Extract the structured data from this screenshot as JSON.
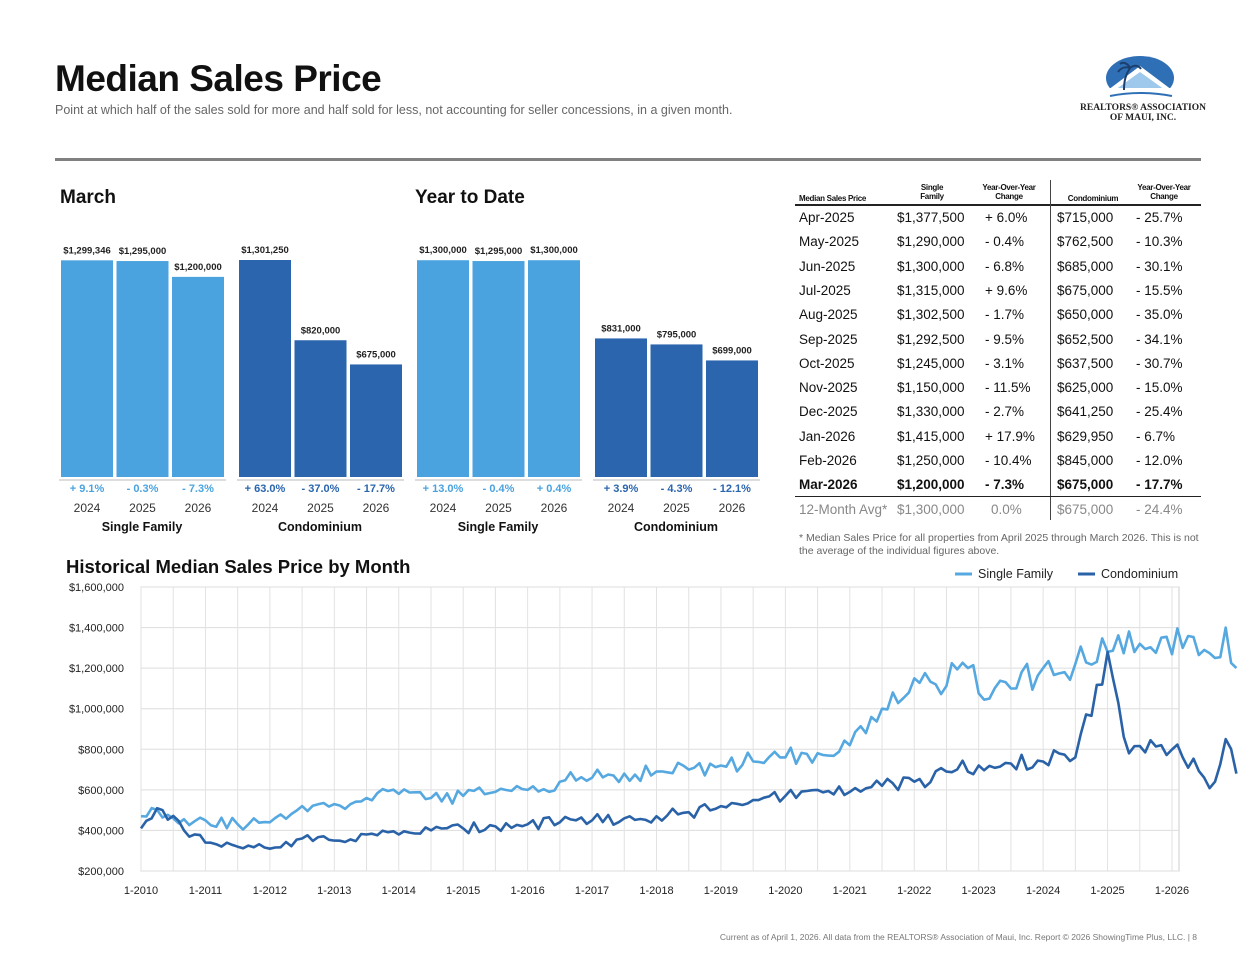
{
  "header": {
    "title": "Median Sales Price",
    "subtitle": "Point at which half of the sales sold for more and half sold for less, not accounting for seller concessions, in a given month.",
    "logo_line1": "REALTORS® ASSOCIATION",
    "logo_line2": "OF MAUI, INC."
  },
  "colors": {
    "single_family": "#4aa3df",
    "condominium": "#2a65ae",
    "historical_sf": "#56a8e0",
    "historical_condo": "#2a62a8"
  },
  "chart_data": [
    {
      "type": "bar",
      "title": "March",
      "groups": [
        {
          "label": "Single Family",
          "categories": [
            "2024",
            "2025",
            "2026"
          ],
          "values": [
            1299346,
            1295000,
            1200000
          ],
          "value_labels": [
            "$1,299,346",
            "$1,295,000",
            "$1,200,000"
          ],
          "changes": [
            "+ 9.1%",
            "- 0.3%",
            "- 7.3%"
          ]
        },
        {
          "label": "Condominium",
          "categories": [
            "2024",
            "2025",
            "2026"
          ],
          "values": [
            1301250,
            820000,
            675000
          ],
          "value_labels": [
            "$1,301,250",
            "$820,000",
            "$675,000"
          ],
          "changes": [
            "+ 63.0%",
            "- 37.0%",
            "- 17.7%"
          ]
        }
      ]
    },
    {
      "type": "bar",
      "title": "Year to Date",
      "groups": [
        {
          "label": "Single Family",
          "categories": [
            "2024",
            "2025",
            "2026"
          ],
          "values": [
            1300000,
            1295000,
            1300000
          ],
          "value_labels": [
            "$1,300,000",
            "$1,295,000",
            "$1,300,000"
          ],
          "changes": [
            "+ 13.0%",
            "- 0.4%",
            "+ 0.4%"
          ]
        },
        {
          "label": "Condominium",
          "categories": [
            "2024",
            "2025",
            "2026"
          ],
          "values": [
            831000,
            795000,
            699000
          ],
          "value_labels": [
            "$831,000",
            "$795,000",
            "$699,000"
          ],
          "changes": [
            "+ 3.9%",
            "- 4.3%",
            "- 12.1%"
          ]
        }
      ]
    },
    {
      "type": "line",
      "title": "Historical Median Sales Price by Month",
      "xlabel": "",
      "ylabel": "",
      "ylim": [
        200000,
        1600000
      ],
      "yticks": [
        "$200,000",
        "$400,000",
        "$600,000",
        "$800,000",
        "$1,000,000",
        "$1,200,000",
        "$1,400,000",
        "$1,600,000"
      ],
      "xticks": [
        "1-2010",
        "1-2011",
        "1-2012",
        "1-2013",
        "1-2014",
        "1-2015",
        "1-2016",
        "1-2017",
        "1-2018",
        "1-2019",
        "1-2020",
        "1-2021",
        "1-2022",
        "1-2023",
        "1-2024",
        "1-2025",
        "1-2026"
      ],
      "x_start": "1-2010",
      "legend": "top-right",
      "series": [
        {
          "name": "Single Family",
          "anchors": [
            [
              0,
              470000
            ],
            [
              2,
              510000
            ],
            [
              6,
              460000
            ],
            [
              12,
              450000
            ],
            [
              18,
              430000
            ],
            [
              24,
              440000
            ],
            [
              30,
              520000
            ],
            [
              36,
              530000
            ],
            [
              42,
              560000
            ],
            [
              48,
              580000
            ],
            [
              54,
              560000
            ],
            [
              60,
              570000
            ],
            [
              66,
              590000
            ],
            [
              72,
              600000
            ],
            [
              78,
              640000
            ],
            [
              84,
              660000
            ],
            [
              90,
              680000
            ],
            [
              96,
              690000
            ],
            [
              102,
              700000
            ],
            [
              108,
              720000
            ],
            [
              114,
              740000
            ],
            [
              120,
              760000
            ],
            [
              126,
              780000
            ],
            [
              132,
              820000
            ],
            [
              138,
              1000000
            ],
            [
              144,
              1150000
            ],
            [
              148,
              1120000
            ],
            [
              154,
              1200000
            ],
            [
              158,
              1050000
            ],
            [
              162,
              1100000
            ],
            [
              168,
              1200000
            ],
            [
              174,
              1220000
            ],
            [
              180,
              1280000
            ],
            [
              186,
              1320000
            ],
            [
              190,
              1350000
            ],
            [
              194,
              1300000
            ],
            [
              198,
              1290000
            ],
            [
              200,
              1250000
            ],
            [
              202,
              1400000
            ],
            [
              204,
              1200000
            ]
          ]
        },
        {
          "name": "Condominium",
          "anchors": [
            [
              0,
              410000
            ],
            [
              2,
              460000
            ],
            [
              4,
              500000
            ],
            [
              8,
              400000
            ],
            [
              12,
              340000
            ],
            [
              18,
              320000
            ],
            [
              24,
              310000
            ],
            [
              30,
              360000
            ],
            [
              36,
              350000
            ],
            [
              42,
              380000
            ],
            [
              48,
              380000
            ],
            [
              54,
              400000
            ],
            [
              60,
              410000
            ],
            [
              66,
              420000
            ],
            [
              72,
              430000
            ],
            [
              78,
              440000
            ],
            [
              84,
              450000
            ],
            [
              90,
              460000
            ],
            [
              96,
              470000
            ],
            [
              102,
              490000
            ],
            [
              108,
              520000
            ],
            [
              114,
              550000
            ],
            [
              120,
              570000
            ],
            [
              126,
              600000
            ],
            [
              132,
              590000
            ],
            [
              138,
              620000
            ],
            [
              144,
              640000
            ],
            [
              150,
              690000
            ],
            [
              156,
              720000
            ],
            [
              162,
              730000
            ],
            [
              168,
              740000
            ],
            [
              174,
              760000
            ],
            [
              180,
              1280000
            ],
            [
              184,
              780000
            ],
            [
              190,
              820000
            ],
            [
              194,
              760000
            ],
            [
              198,
              660000
            ],
            [
              200,
              640000
            ],
            [
              202,
              850000
            ],
            [
              204,
              680000
            ]
          ]
        }
      ]
    }
  ],
  "table": {
    "headers": [
      "Median Sales Price",
      "Single Family",
      "Year-Over-Year Change",
      "Condominium",
      "Year-Over-Year Change"
    ],
    "rows": [
      [
        "Apr-2025",
        "$1,377,500",
        "+ 6.0%",
        "$715,000",
        "- 25.7%"
      ],
      [
        "May-2025",
        "$1,290,000",
        "- 0.4%",
        "$762,500",
        "- 10.3%"
      ],
      [
        "Jun-2025",
        "$1,300,000",
        "- 6.8%",
        "$685,000",
        "- 30.1%"
      ],
      [
        "Jul-2025",
        "$1,315,000",
        "+ 9.6%",
        "$675,000",
        "- 15.5%"
      ],
      [
        "Aug-2025",
        "$1,302,500",
        "- 1.7%",
        "$650,000",
        "- 35.0%"
      ],
      [
        "Sep-2025",
        "$1,292,500",
        "- 9.5%",
        "$652,500",
        "- 34.1%"
      ],
      [
        "Oct-2025",
        "$1,245,000",
        "- 3.1%",
        "$637,500",
        "- 30.7%"
      ],
      [
        "Nov-2025",
        "$1,150,000",
        "- 11.5%",
        "$625,000",
        "- 15.0%"
      ],
      [
        "Dec-2025",
        "$1,330,000",
        "- 2.7%",
        "$641,250",
        "- 25.4%"
      ],
      [
        "Jan-2026",
        "$1,415,000",
        "+ 17.9%",
        "$629,950",
        "- 6.7%"
      ],
      [
        "Feb-2026",
        "$1,250,000",
        "- 10.4%",
        "$845,000",
        "- 12.0%"
      ],
      [
        "Mar-2026",
        "$1,200,000",
        "- 7.3%",
        "$675,000",
        "- 17.7%"
      ]
    ],
    "avg_row": [
      "12-Month Avg*",
      "$1,300,000",
      "0.0%",
      "$675,000",
      "- 24.4%"
    ],
    "note": "* Median Sales Price for all properties from April 2025 through March 2026. This is not the average of the individual figures above."
  },
  "footer": "Current as of April 1, 2026. All data from the REALTORS® Association of Maui, Inc. Report © 2026 ShowingTime Plus, LLC.  |  8"
}
